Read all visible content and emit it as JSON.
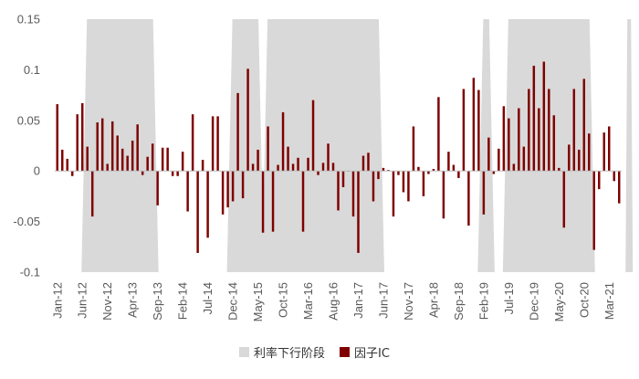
{
  "chart_data": {
    "type": "bar",
    "title": "",
    "xlabel": "",
    "ylabel": "",
    "ylim": [
      -0.1,
      0.15
    ],
    "yticks": [
      0.15,
      0.1,
      0.05,
      0,
      -0.05,
      -0.1
    ],
    "ytick_labels": [
      "0.15",
      "0.1",
      "0.05",
      "0",
      "-0.05",
      "-0.1"
    ],
    "x_start": "Jan-12",
    "xtick_labels": [
      "Jan-12",
      "Jun-12",
      "Nov-12",
      "Apr-13",
      "Sep-13",
      "Feb-14",
      "Jul-14",
      "Dec-14",
      "May-15",
      "Oct-15",
      "Mar-16",
      "Aug-16",
      "Jan-17",
      "Jun-17",
      "Nov-17",
      "Apr-18",
      "Sep-18",
      "Feb-19",
      "Jul-19",
      "Dec-19",
      "May-20",
      "Oct-20",
      "Mar-21"
    ],
    "grid": false,
    "legend_position": "bottom",
    "series": [
      {
        "name": "因子IC",
        "color": "#7f0000",
        "values": [
          0.066,
          0.021,
          0.012,
          -0.005,
          0.056,
          0.067,
          0.024,
          -0.045,
          0.048,
          0.052,
          0.007,
          0.049,
          0.035,
          0.022,
          0.015,
          0.03,
          0.046,
          -0.004,
          0.014,
          0.027,
          -0.034,
          0.023,
          0.023,
          -0.005,
          -0.005,
          0.019,
          -0.04,
          0.056,
          -0.081,
          0.011,
          -0.066,
          0.054,
          0.054,
          -0.043,
          -0.036,
          -0.03,
          0.077,
          -0.027,
          0.101,
          0.007,
          0.021,
          -0.061,
          0.044,
          -0.06,
          0.006,
          0.058,
          0.024,
          0.007,
          0.013,
          -0.06,
          0.013,
          0.07,
          -0.004,
          0.008,
          0.027,
          0.008,
          -0.039,
          -0.016,
          0.0,
          -0.045,
          -0.081,
          0.015,
          0.018,
          -0.03,
          -0.008,
          0.003,
          0.001,
          -0.045,
          -0.004,
          -0.021,
          -0.03,
          0.044,
          0.004,
          -0.025,
          -0.003,
          0.002,
          0.073,
          -0.047,
          0.019,
          0.006,
          -0.007,
          0.081,
          -0.054,
          0.092,
          0.08,
          -0.043,
          0.033,
          -0.003,
          0.022,
          0.064,
          0.052,
          0.007,
          0.062,
          0.024,
          0.081,
          0.104,
          0.062,
          0.108,
          0.081,
          0.055,
          0.003,
          -0.056,
          0.026,
          0.081,
          0.021,
          0.091,
          0.037,
          -0.078,
          -0.018,
          0.038,
          0.044,
          -0.01,
          -0.032
        ]
      }
    ],
    "shaded_regions": [
      {
        "label": "利率下行阶段",
        "color": "#d9d9d9",
        "start": "Jun-12",
        "end": "Sep-13"
      },
      {
        "label": "利率下行阶段",
        "color": "#d9d9d9",
        "start": "Nov-14",
        "end": "Jun-15"
      },
      {
        "label": "利率下行阶段",
        "color": "#d9d9d9",
        "start": "Jun-15",
        "end": "Jun-17"
      },
      {
        "label": "利率下行阶段",
        "color": "#d9d9d9",
        "start": "Jan-19",
        "end": "Apr-19"
      },
      {
        "label": "利率下行阶段",
        "color": "#d9d9d9",
        "start": "Jun-19",
        "end": "Dec-20"
      },
      {
        "label": "利率下行阶段",
        "color": "#d9d9d9",
        "start": "Jul-21",
        "end": "Jul-21"
      }
    ],
    "legend": [
      {
        "label": "利率下行阶段",
        "color": "#d9d9d9"
      },
      {
        "label": "因子IC",
        "color": "#7f0000"
      }
    ]
  }
}
